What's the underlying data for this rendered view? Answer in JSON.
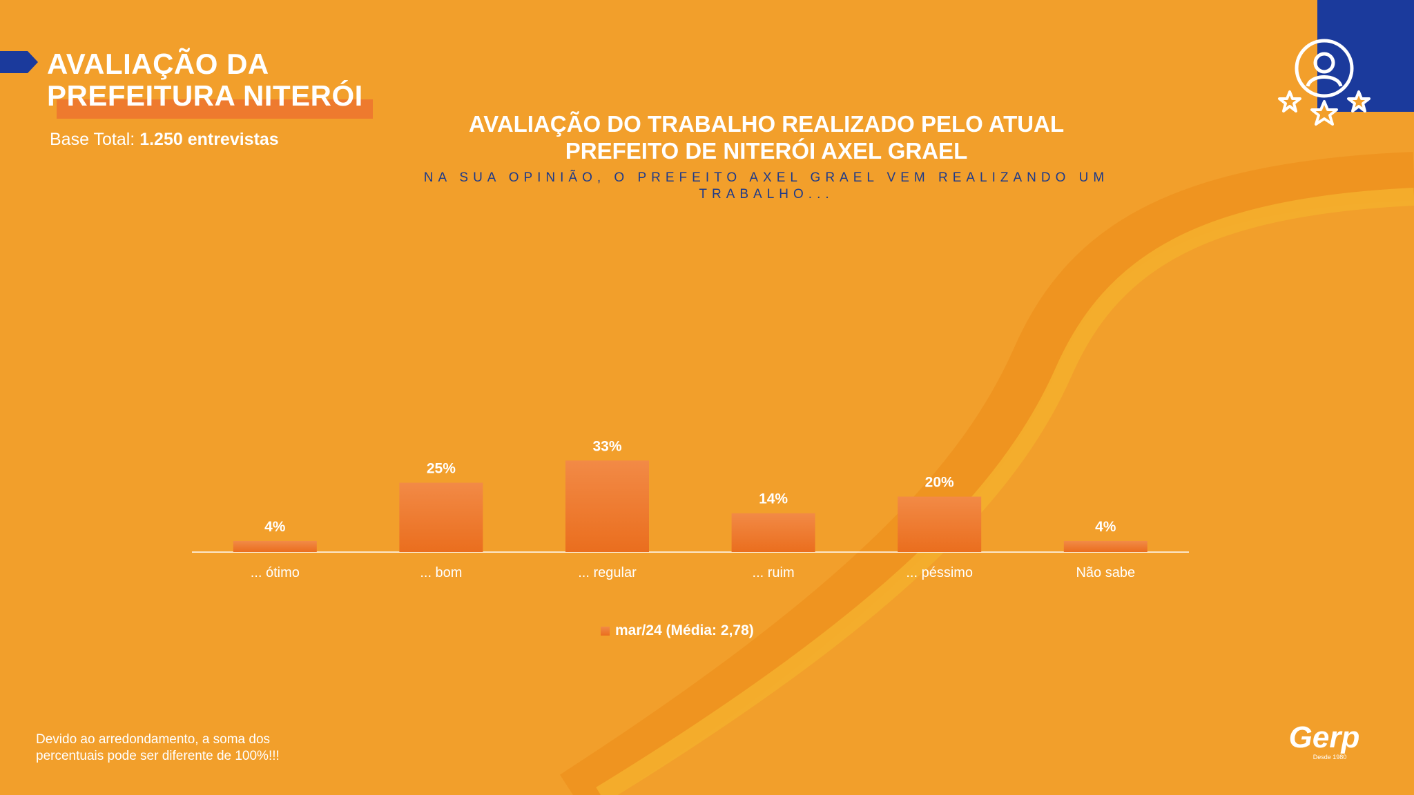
{
  "header": {
    "title_line1": "AVALIAÇÃO DA",
    "title_line2": "PREFEITURA NITERÓI",
    "base_label": "Base Total:",
    "base_value": "1.250 entrevistas"
  },
  "chart_header": {
    "title_line1": "AVALIAÇÃO DO TRABALHO REALIZADO PELO ATUAL",
    "title_line2": "PREFEITO DE NITERÓI AXEL GRAEL",
    "subtitle_line1": "NA SUA OPINIÃO, O PREFEITO AXEL GRAEL VEM REALIZANDO UM",
    "subtitle_line2": "TRABALHO..."
  },
  "chart_data": {
    "type": "bar",
    "categories": [
      "... ótimo",
      "... bom",
      "... regular",
      "... ruim",
      "... péssimo",
      "Não sabe"
    ],
    "series": [
      {
        "name": "mar/24 (Média: 2,78)",
        "values": [
          4,
          25,
          33,
          14,
          20,
          4
        ]
      }
    ],
    "value_suffix": "%",
    "ylim": [
      0,
      100
    ],
    "grid": false,
    "legend": "bottom-center"
  },
  "footnote": {
    "line1": "Devido ao arredondamento, a soma dos",
    "line2": "percentuais pode ser diferente de 100%!!!"
  },
  "logo": {
    "name": "Gerp",
    "tagline": "Desde 1980"
  },
  "colors": {
    "background": "#f29f2b",
    "bar_top": "#f28a46",
    "bar_bottom": "#ea6e1e",
    "navy": "#1b3a9c",
    "text": "#ffffff"
  },
  "icons": [
    "user-rating-icon",
    "stars-icon"
  ]
}
